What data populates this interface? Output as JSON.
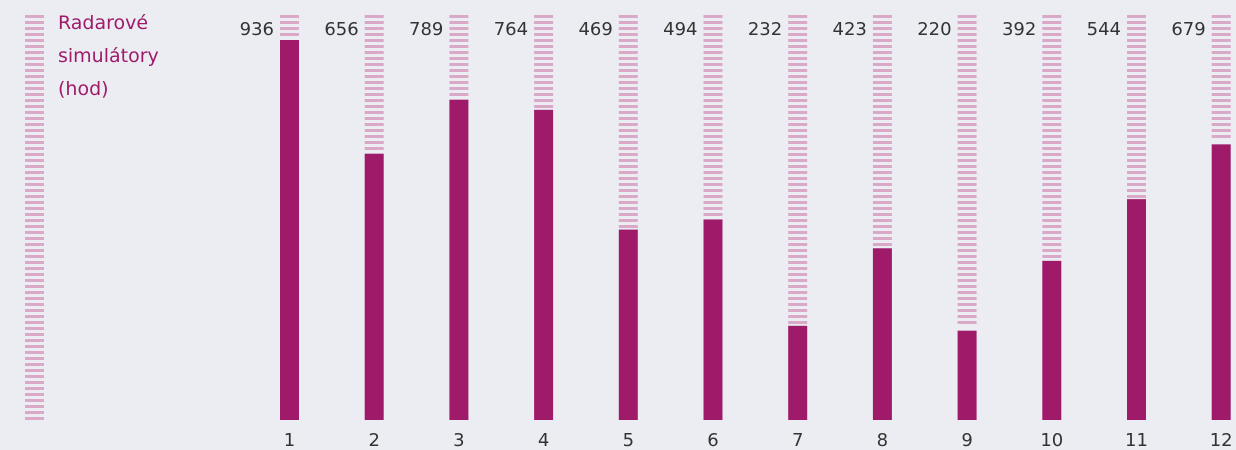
{
  "chart_data": {
    "type": "bar",
    "title": "Radarové simulátory (hod)",
    "legend_lines": [
      "Radarové",
      "simulátory",
      "(hod)"
    ],
    "categories": [
      "1",
      "2",
      "3",
      "4",
      "5",
      "6",
      "7",
      "8",
      "9",
      "10",
      "11",
      "12"
    ],
    "values": [
      936,
      656,
      789,
      764,
      469,
      494,
      232,
      423,
      220,
      392,
      544,
      679
    ],
    "ylim": [
      0,
      936
    ],
    "grid": false,
    "legend_position": "top-left",
    "colors": {
      "bar": "#a01a6a",
      "track": "#d9a9c7",
      "background": "#ebedf2"
    }
  }
}
